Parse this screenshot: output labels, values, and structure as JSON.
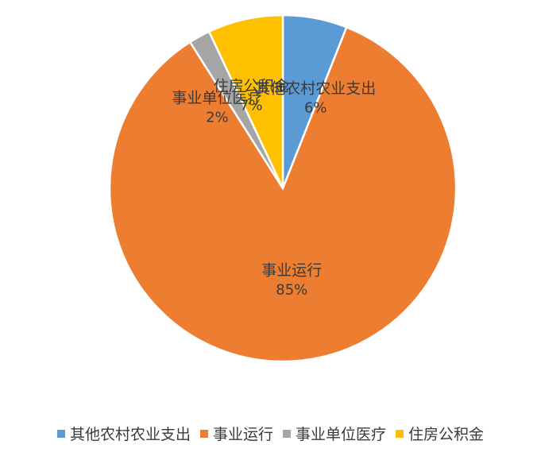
{
  "chart_data": {
    "type": "pie",
    "title": "",
    "slices": [
      {
        "name": "其他农村农业支出",
        "value": 6,
        "label": "6%",
        "color": "#5b9bd5"
      },
      {
        "name": "事业运行",
        "value": 85,
        "label": "85%",
        "color": "#ed7d31"
      },
      {
        "name": "事业单位医疗",
        "value": 2,
        "label": "2%",
        "color": "#a5a5a5"
      },
      {
        "name": "住房公积金",
        "value": 7,
        "label": "7%",
        "color": "#ffc000"
      }
    ],
    "start_angle_deg": 0,
    "direction": "clockwise",
    "legend_position": "bottom"
  }
}
